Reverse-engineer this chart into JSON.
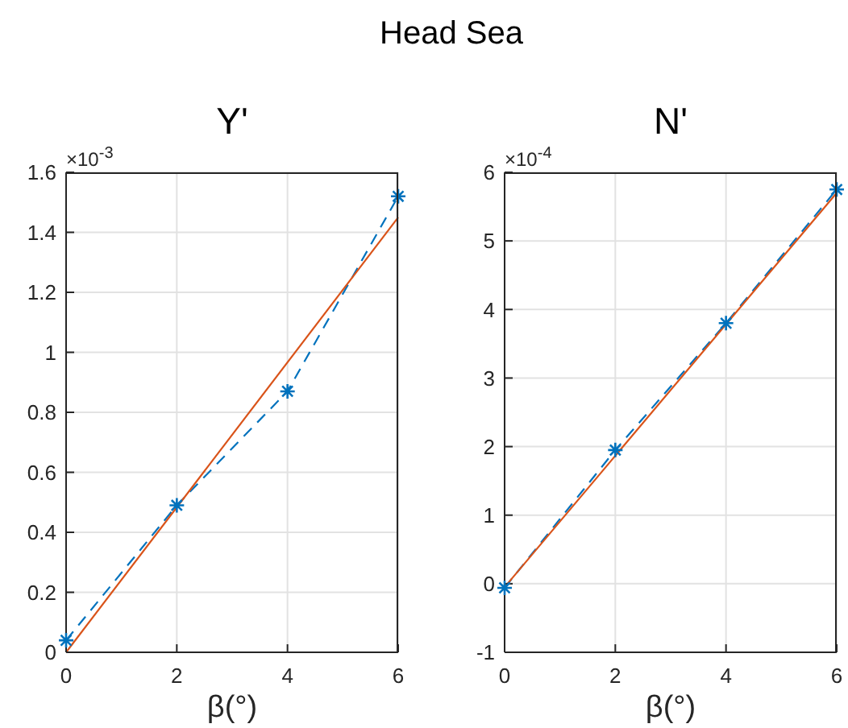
{
  "chart_data": [
    {
      "type": "line",
      "title": "Y'",
      "xlabel": "β(°)",
      "annotations": [
        "Head Sea",
        "×10$^{-3}$"
      ],
      "xlim": [
        0,
        6
      ],
      "xticks": [
        0,
        2,
        4,
        6
      ],
      "ylim": [
        0,
        1.6
      ],
      "yticks": [
        0,
        0.2,
        0.4,
        0.6,
        0.8,
        1,
        1.2,
        1.4,
        1.6
      ],
      "grid": true,
      "series": [
        {
          "x": [
            0,
            2,
            4,
            6
          ],
          "values": [
            0.04,
            0.49,
            0.87,
            1.52
          ],
          "color": "#0072bd",
          "marker": "cross",
          "line_style": "dashed"
        },
        {
          "x": [
            0,
            6
          ],
          "values": [
            0,
            1.45
          ],
          "color": "#d95319",
          "marker": "none",
          "line_style": "solid"
        }
      ]
    },
    {
      "type": "line",
      "title": "N'",
      "xlabel": "β(°)",
      "annotations": [
        "×10$^{-4}$"
      ],
      "xlim": [
        0,
        6
      ],
      "xticks": [
        0,
        2,
        4,
        6
      ],
      "ylim": [
        -1,
        6
      ],
      "yticks": [
        -1,
        0,
        1,
        2,
        3,
        4,
        5,
        6
      ],
      "grid": true,
      "series": [
        {
          "x": [
            0,
            2,
            4,
            6
          ],
          "values": [
            -0.06,
            1.95,
            3.8,
            5.75
          ],
          "color": "#0072bd",
          "marker": "cross",
          "line_style": "dashed"
        },
        {
          "x": [
            0,
            6
          ],
          "values": [
            -0.05,
            5.7
          ],
          "color": "#d95319",
          "marker": "none",
          "line_style": "solid"
        }
      ]
    }
  ]
}
